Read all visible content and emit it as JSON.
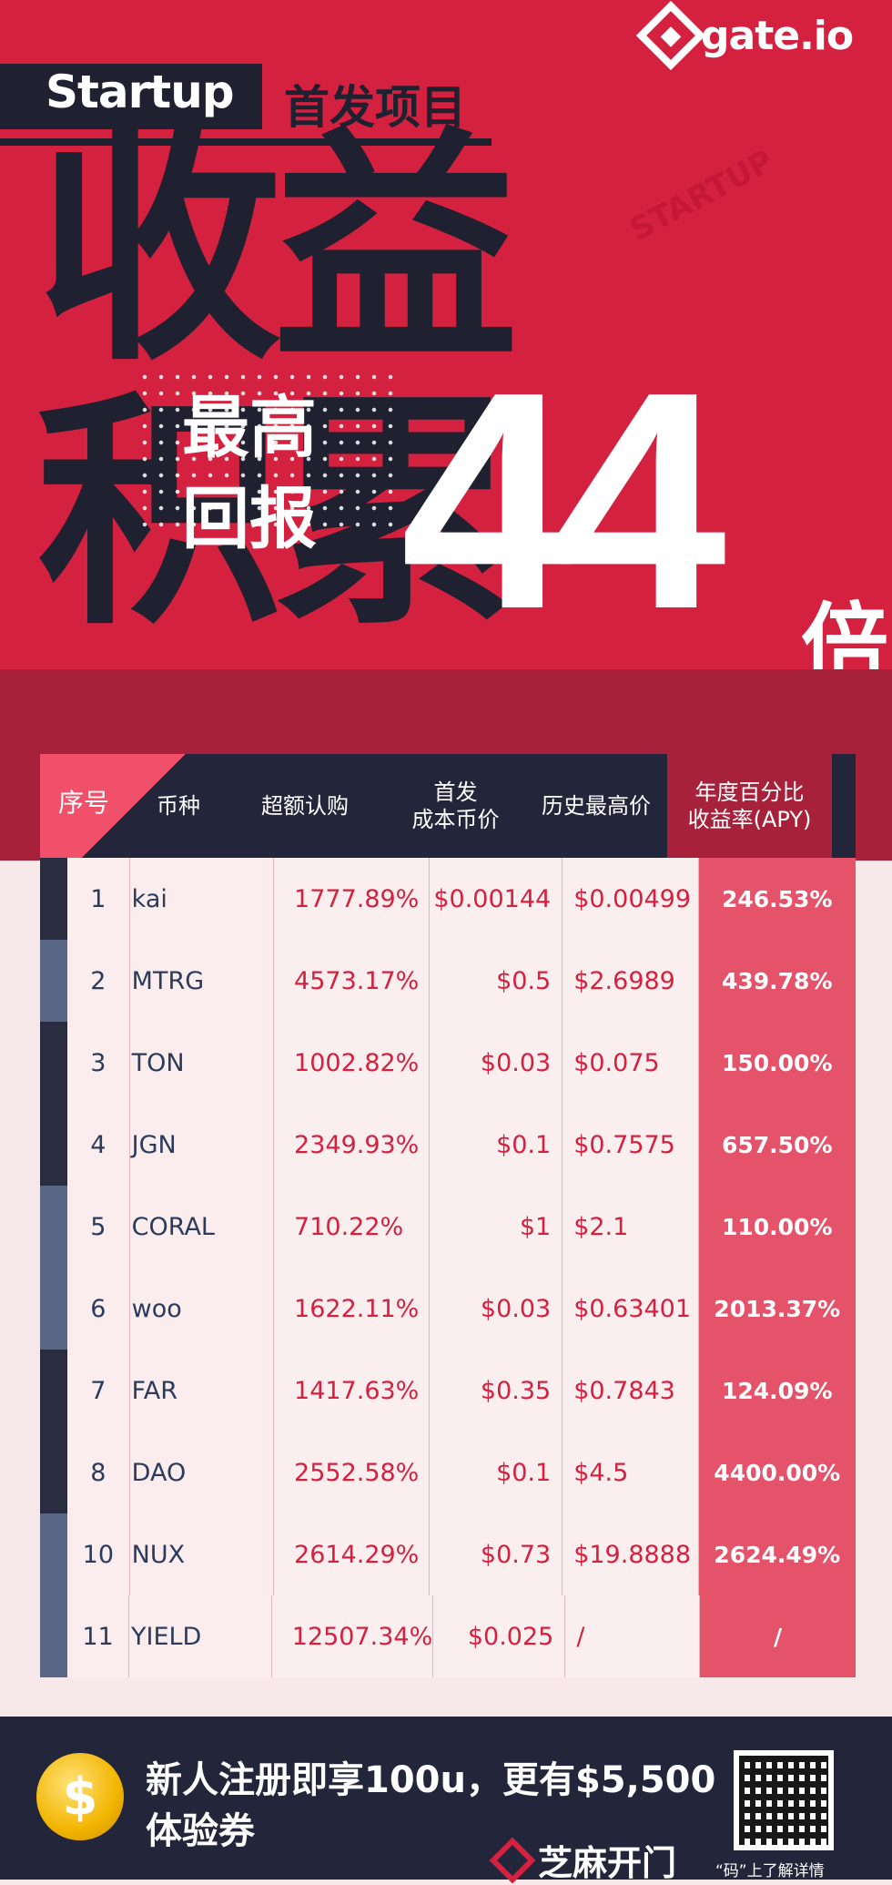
{
  "header": {
    "logo_text": "gate.io",
    "startup_label": "Startup",
    "subtitle": "首发项目",
    "headline_line1": "收益",
    "headline_line2": "积累",
    "max_label_1": "最高",
    "max_label_2": "回报",
    "big_number": "44",
    "big_unit": "倍",
    "watermark": "STARTUP"
  },
  "table": {
    "headers": {
      "idx": "序号",
      "coin": "币种",
      "oversub": "超额认购",
      "cost": "首发\n成本币价",
      "high": "历史最高价",
      "apy": "年度百分比\n收益率(APY)"
    },
    "rows": [
      {
        "idx": "1",
        "coin": "kai",
        "oversub": "1777.89%",
        "cost": "$0.00144",
        "high": "$0.00499",
        "apy": "246.53%"
      },
      {
        "idx": "2",
        "coin": "MTRG",
        "oversub": "4573.17%",
        "cost": "$0.5",
        "high": "$2.6989",
        "apy": "439.78%"
      },
      {
        "idx": "3",
        "coin": "TON",
        "oversub": "1002.82%",
        "cost": "$0.03",
        "high": "$0.075",
        "apy": "150.00%"
      },
      {
        "idx": "4",
        "coin": "JGN",
        "oversub": "2349.93%",
        "cost": "$0.1",
        "high": "$0.7575",
        "apy": "657.50%"
      },
      {
        "idx": "5",
        "coin": "CORAL",
        "oversub": "710.22%",
        "cost": "$1",
        "high": "$2.1",
        "apy": "110.00%"
      },
      {
        "idx": "6",
        "coin": "woo",
        "oversub": "1622.11%",
        "cost": "$0.03",
        "high": "$0.63401",
        "apy": "2013.37%"
      },
      {
        "idx": "7",
        "coin": "FAR",
        "oversub": "1417.63%",
        "cost": "$0.35",
        "high": "$0.7843",
        "apy": "124.09%"
      },
      {
        "idx": "8",
        "coin": "DAO",
        "oversub": "2552.58%",
        "cost": "$0.1",
        "high": "$4.5",
        "apy": "4400.00%"
      },
      {
        "idx": "10",
        "coin": "NUX",
        "oversub": "2614.29%",
        "cost": "$0.73",
        "high": "$19.8888",
        "apy": "2624.49%"
      },
      {
        "idx": "11",
        "coin": "YIELD",
        "oversub": "12507.34%",
        "cost": "$0.025",
        "high": "/",
        "apy": "/"
      }
    ],
    "bar_colors": [
      "#2a2d40",
      "#5a6784",
      "#2a2d40",
      "#2a2d40",
      "#5a6784",
      "#5a6784",
      "#2a2d40",
      "#2a2d40",
      "#5a6784",
      "#5a6784"
    ]
  },
  "footer": {
    "coin_symbol": "$",
    "promo_line1": "新人注册即享100u，更有$5,500",
    "promo_line2": "体验券",
    "brand_text": "芝麻开门",
    "qr_caption": "“码”上了解详情"
  },
  "colors": {
    "accent": "#d4213f",
    "dark": "#23263a",
    "apy_bg": "#e5536a"
  }
}
